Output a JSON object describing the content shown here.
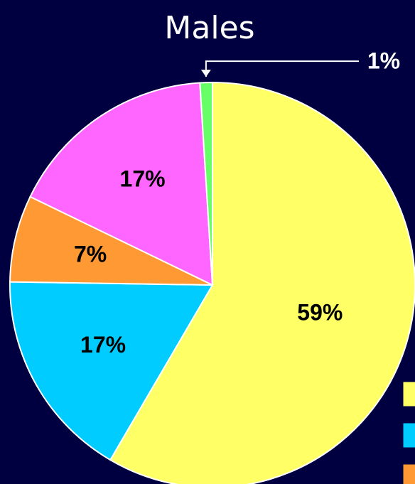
{
  "chart_data": {
    "type": "pie",
    "title": "Males",
    "categories": [
      null,
      null,
      null,
      null,
      null
    ],
    "values": [
      59,
      17,
      7,
      17,
      1
    ],
    "value_labels": [
      "59%",
      "17%",
      "7%",
      "17%",
      "1%"
    ],
    "colors": [
      "#ffff66",
      "#00ccff",
      "#ff9933",
      "#ff66ff",
      "#66ff66"
    ],
    "legend": "right"
  }
}
